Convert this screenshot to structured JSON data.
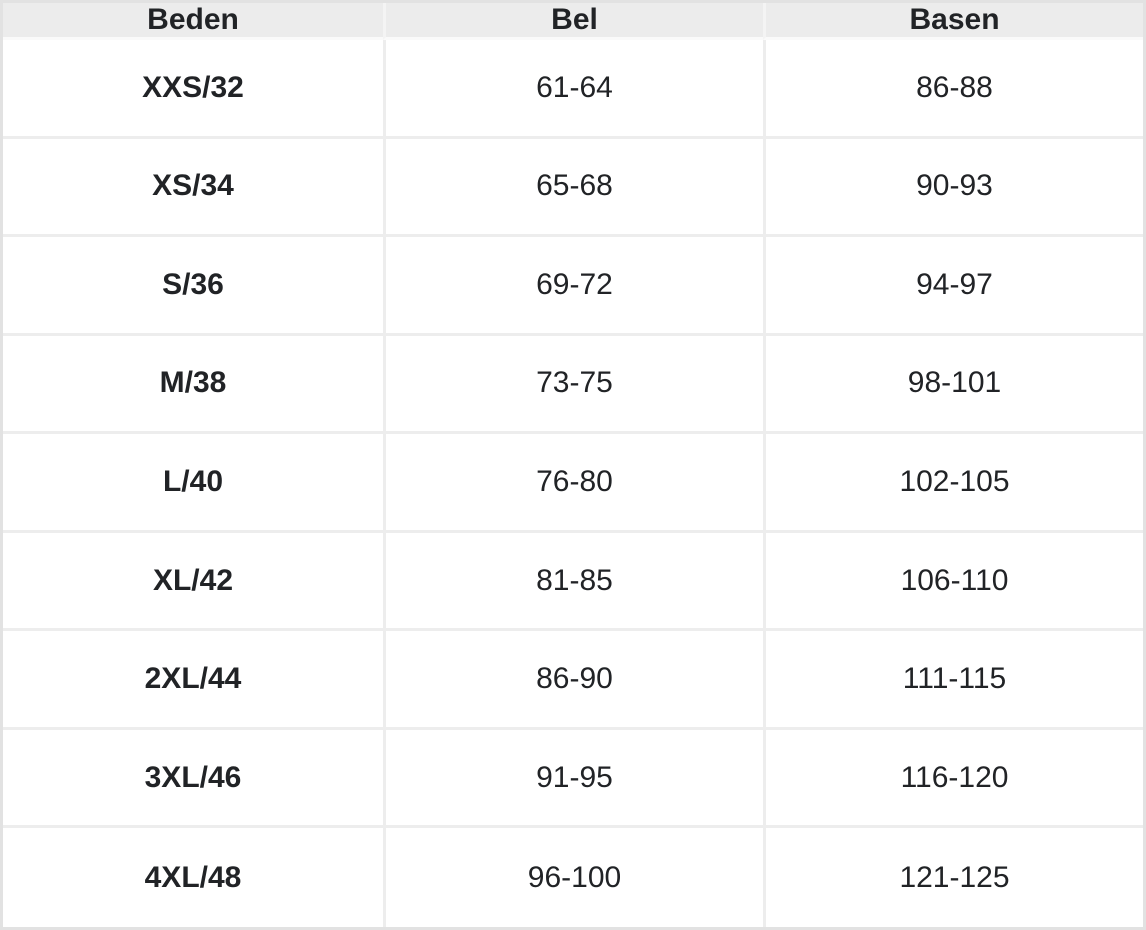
{
  "colors": {
    "outer_border": "#e2e2e2",
    "header_bg": "#ececec",
    "header_separator": "#f4f4f4",
    "header_bottom": "#fafafa",
    "separator": "#ededed",
    "row_bg": "#ffffff",
    "text": "#212326"
  },
  "table": {
    "columns": [
      "Beden",
      "Bel",
      "Basen"
    ],
    "rows": [
      [
        "XXS/32",
        "61-64",
        "86-88"
      ],
      [
        "XS/34",
        "65-68",
        "90-93"
      ],
      [
        "S/36",
        "69-72",
        "94-97"
      ],
      [
        "M/38",
        "73-75",
        "98-101"
      ],
      [
        "L/40",
        "76-80",
        "102-105"
      ],
      [
        "XL/42",
        "81-85",
        "106-110"
      ],
      [
        "2XL/44",
        "86-90",
        "111-115"
      ],
      [
        "3XL/46",
        "91-95",
        "116-120"
      ],
      [
        "4XL/48",
        "96-100",
        "121-125"
      ]
    ]
  }
}
